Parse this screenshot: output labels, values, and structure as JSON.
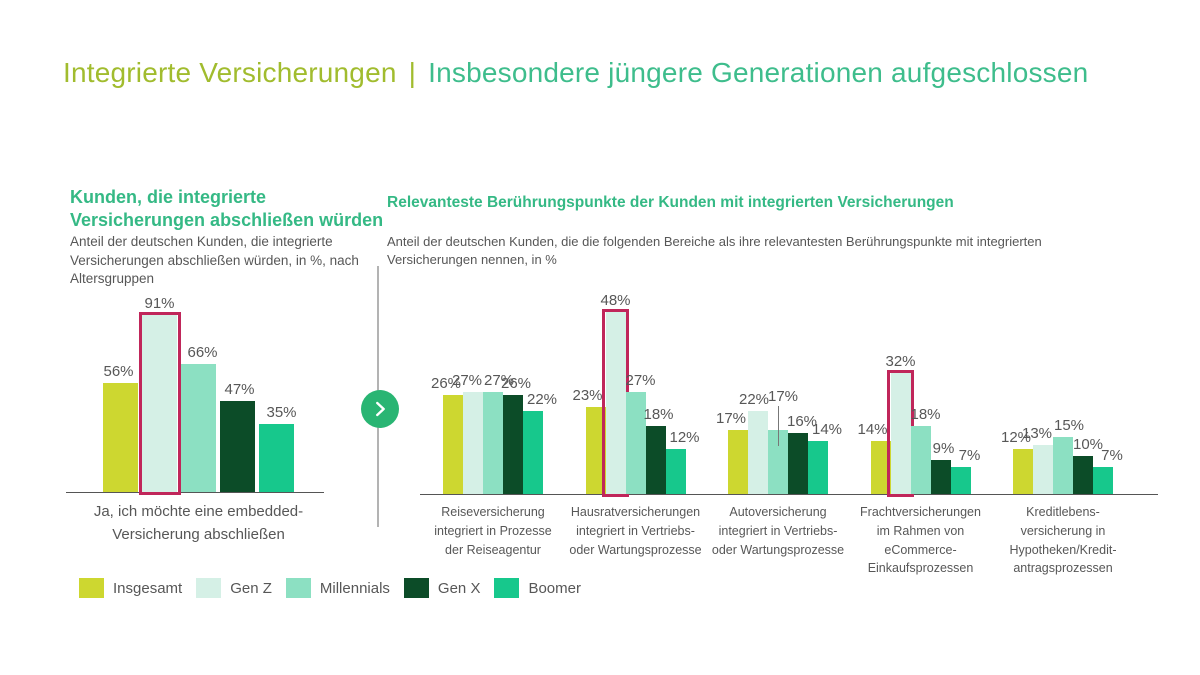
{
  "page_title": {
    "left": "Integrierte Versicherungen",
    "separator": "|",
    "right": "Insbesondere jüngere Generationen aufgeschlossen"
  },
  "colors": {
    "title_left": "#a1bc2e",
    "title_right": "#3ebd8c",
    "section_title": "#35b985",
    "text_gray": "#575757",
    "highlight_border": "#c0265a",
    "arrow_circle": "#29b573",
    "axis_line": "#555555"
  },
  "legend": {
    "items": [
      {
        "label": "Insgesamt",
        "color": "#cdd730"
      },
      {
        "label": "Gen Z",
        "color": "#d5f0e6"
      },
      {
        "label": "Millennials",
        "color": "#8ce0c2"
      },
      {
        "label": "Gen X",
        "color": "#0c4c28"
      },
      {
        "label": "Boomer",
        "color": "#17c88c"
      }
    ]
  },
  "chart_data": [
    {
      "type": "bar",
      "title": "Kunden, die integrierte Versicherungen abschließen würden",
      "subtitle": "Anteil der deutschen Kunden, die integrierte Versicherungen abschließen würden, in %, nach Altersgruppen",
      "unit": "%",
      "ylim": [
        0,
        100
      ],
      "grid": false,
      "legend_position": "bottom",
      "series": [
        "Insgesamt",
        "Gen Z",
        "Millennials",
        "Gen X",
        "Boomer"
      ],
      "highlighted_series": "Gen Z",
      "groups": [
        {
          "label": "Ja, ich möchte eine embedded-Versicherung abschließen",
          "label_lines": [
            "Ja, ich möchte eine embedded-",
            "Versicherung abschließen"
          ],
          "values": [
            56,
            91,
            66,
            47,
            35
          ],
          "highlight_index": 1
        }
      ]
    },
    {
      "type": "bar",
      "title": "Relevanteste Berührungspunkte der Kunden mit integrierten Versicherungen",
      "subtitle": "Anteil der deutschen Kunden, die die folgenden Bereiche als ihre relevantesten Berührungspunkte mit integrierten Versicherungen nennen, in %",
      "unit": "%",
      "ylim": [
        0,
        60
      ],
      "grid": false,
      "legend_position": "bottom",
      "series": [
        "Insgesamt",
        "Gen Z",
        "Millennials",
        "Gen X",
        "Boomer"
      ],
      "highlighted_series": "Gen Z",
      "groups": [
        {
          "label": "Reiseversicherung integriert in Prozesse der Reiseagentur",
          "label_lines": [
            "Reiseversicherung",
            "integriert in Prozesse",
            "der Reiseagentur"
          ],
          "values": [
            26,
            27,
            27,
            26,
            22
          ],
          "highlight_index": null
        },
        {
          "label": "Hausratversicherungen integriert in Vertriebs- oder Wartungsprozesse",
          "label_lines": [
            "Hausratversicherungen",
            "integriert in Vertriebs-",
            "oder Wartungsprozesse"
          ],
          "values": [
            23,
            48,
            27,
            18,
            12
          ],
          "highlight_index": 1
        },
        {
          "label": "Autoversicherung integriert in Vertriebs- oder Wartungsprozesse",
          "label_lines": [
            "Autoversicherung",
            "integriert in Vertriebs-",
            "oder Wartungsprozesse"
          ],
          "values": [
            17,
            22,
            17,
            16,
            14
          ],
          "highlight_index": null
        },
        {
          "label": "Frachtversicherungen im Rahmen von eCommerce-Einkaufsprozessen",
          "label_lines": [
            "Frachtversicherungen",
            "im Rahmen von",
            "eCommerce-",
            "Einkaufsprozessen"
          ],
          "values": [
            14,
            32,
            18,
            9,
            7
          ],
          "highlight_index": 1
        },
        {
          "label": "Kreditlebensversicherung in Hypotheken/Kreditantragsprozessen",
          "label_lines": [
            "Kreditlebens-",
            "versicherung in",
            "Hypotheken/Kredit-",
            "antragsprozessen"
          ],
          "values": [
            12,
            13,
            15,
            10,
            7
          ],
          "highlight_index": null
        }
      ]
    }
  ]
}
